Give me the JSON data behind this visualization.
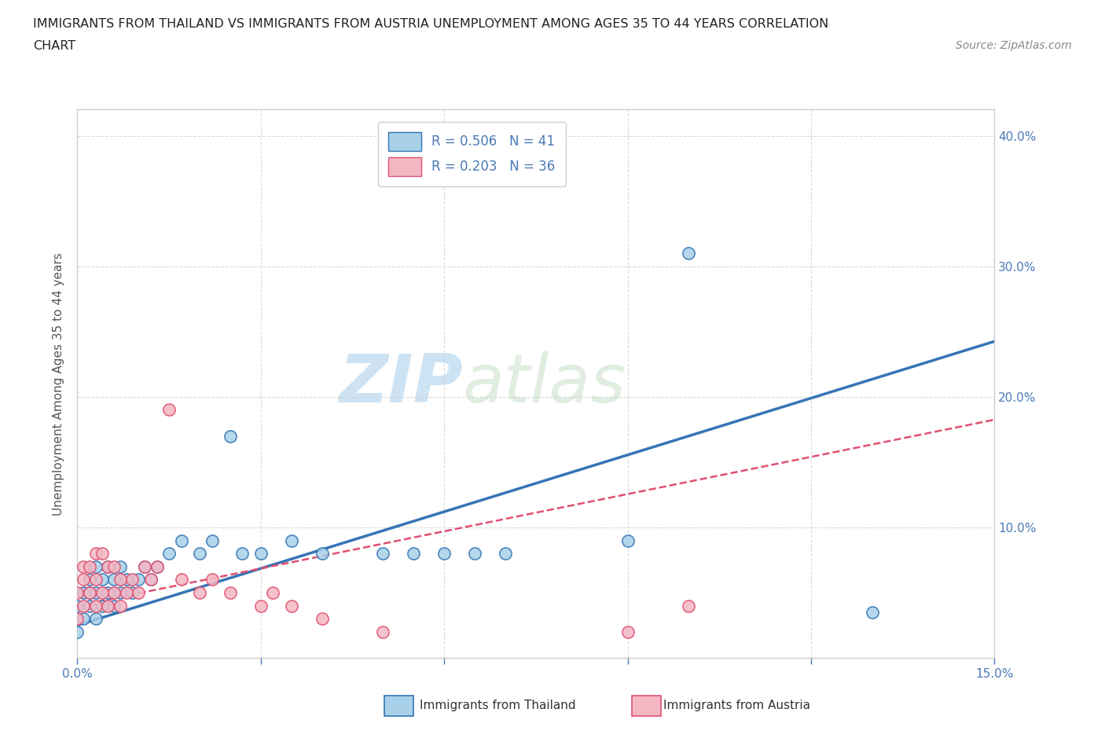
{
  "title_line1": "IMMIGRANTS FROM THAILAND VS IMMIGRANTS FROM AUSTRIA UNEMPLOYMENT AMONG AGES 35 TO 44 YEARS CORRELATION",
  "title_line2": "CHART",
  "source": "Source: ZipAtlas.com",
  "ylabel": "Unemployment Among Ages 35 to 44 years",
  "xlim": [
    0.0,
    0.15
  ],
  "ylim": [
    0.0,
    0.42
  ],
  "thailand_color": "#a8d0e8",
  "austria_color": "#f4b8c4",
  "thailand_line_color": "#3575b5",
  "austria_line_color": "#e05070",
  "legend_thailand_label": "R = 0.506   N = 41",
  "legend_austria_label": "R = 0.203   N = 36",
  "watermark_zip": "ZIP",
  "watermark_atlas": "atlas",
  "background_color": "#ffffff",
  "grid_color": "#d0d0d0",
  "title_color": "#222222",
  "axis_label_color": "#555555",
  "tick_label_color": "#4a7ab5",
  "thailand_x": [
    0.0,
    0.0,
    0.001,
    0.001,
    0.002,
    0.002,
    0.002,
    0.003,
    0.003,
    0.003,
    0.004,
    0.004,
    0.005,
    0.005,
    0.006,
    0.006,
    0.007,
    0.007,
    0.008,
    0.009,
    0.01,
    0.011,
    0.012,
    0.013,
    0.015,
    0.017,
    0.02,
    0.022,
    0.025,
    0.027,
    0.03,
    0.035,
    0.04,
    0.05,
    0.055,
    0.06,
    0.065,
    0.07,
    0.09,
    0.1,
    0.13
  ],
  "thailand_y": [
    0.02,
    0.04,
    0.03,
    0.05,
    0.04,
    0.05,
    0.06,
    0.03,
    0.05,
    0.07,
    0.04,
    0.06,
    0.05,
    0.07,
    0.04,
    0.06,
    0.05,
    0.07,
    0.06,
    0.05,
    0.06,
    0.07,
    0.06,
    0.07,
    0.08,
    0.09,
    0.08,
    0.09,
    0.17,
    0.08,
    0.08,
    0.09,
    0.08,
    0.08,
    0.08,
    0.08,
    0.08,
    0.08,
    0.09,
    0.31,
    0.035
  ],
  "austria_x": [
    0.0,
    0.0,
    0.001,
    0.001,
    0.001,
    0.002,
    0.002,
    0.003,
    0.003,
    0.003,
    0.004,
    0.004,
    0.005,
    0.005,
    0.006,
    0.006,
    0.007,
    0.007,
    0.008,
    0.009,
    0.01,
    0.011,
    0.012,
    0.013,
    0.015,
    0.017,
    0.02,
    0.022,
    0.025,
    0.03,
    0.032,
    0.035,
    0.04,
    0.05,
    0.09,
    0.1
  ],
  "austria_y": [
    0.03,
    0.05,
    0.04,
    0.06,
    0.07,
    0.05,
    0.07,
    0.04,
    0.06,
    0.08,
    0.05,
    0.08,
    0.04,
    0.07,
    0.05,
    0.07,
    0.04,
    0.06,
    0.05,
    0.06,
    0.05,
    0.07,
    0.06,
    0.07,
    0.19,
    0.06,
    0.05,
    0.06,
    0.05,
    0.04,
    0.05,
    0.04,
    0.03,
    0.02,
    0.02,
    0.04
  ],
  "thailand_slope": 1.45,
  "thailand_intercept": 0.025,
  "austria_slope": 0.95,
  "austria_intercept": 0.04
}
